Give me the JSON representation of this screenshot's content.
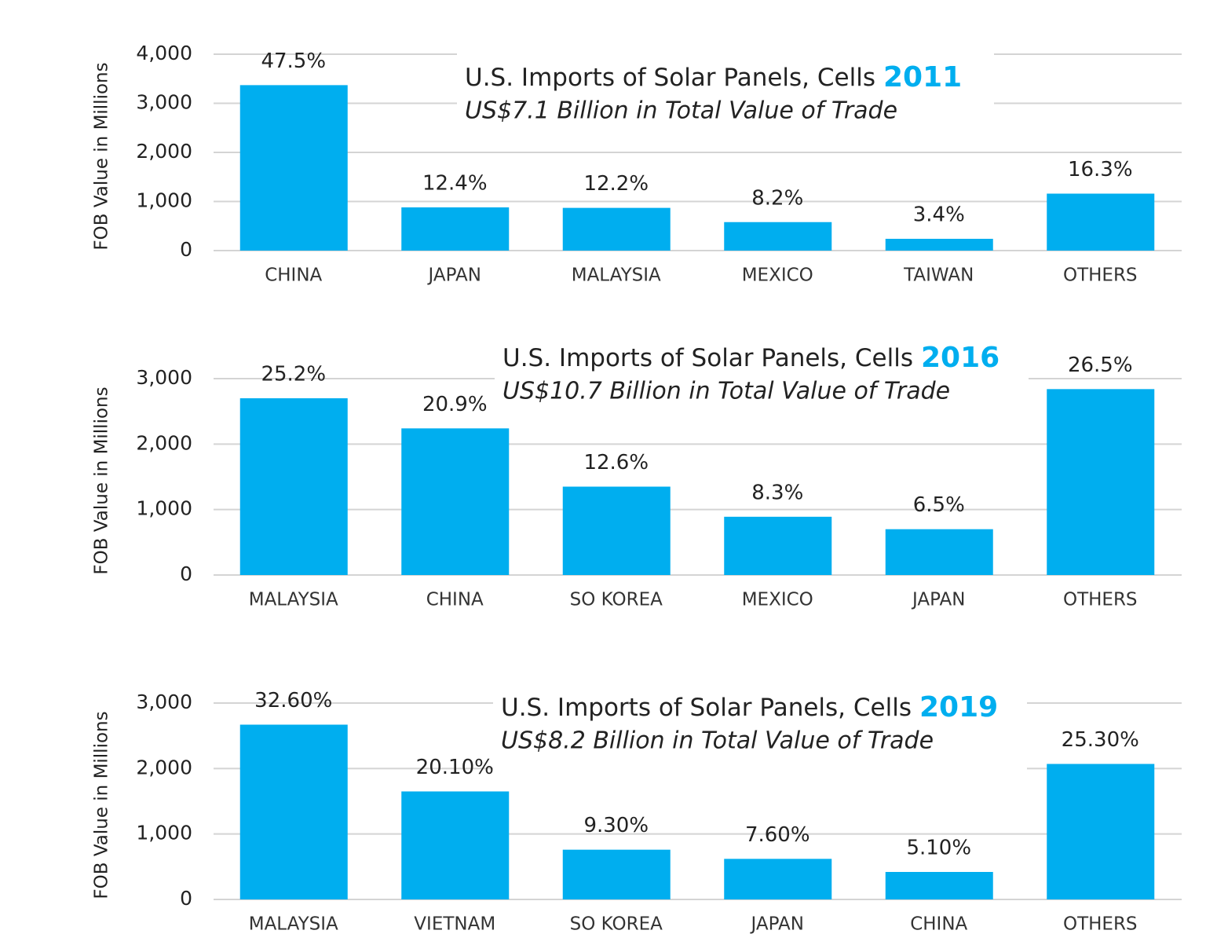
{
  "chart_data": [
    {
      "type": "bar",
      "title": "U.S. Imports of Solar Panels, Cells",
      "title_year": "2011",
      "subtitle": "US$7.1 Billion in Total Value of Trade",
      "ylabel": "FOB Value in Millions",
      "categories": [
        "CHINA",
        "JAPAN",
        "MALAYSIA",
        "MEXICO",
        "TAIWAN",
        "OTHERS"
      ],
      "values": [
        3370,
        880,
        870,
        580,
        240,
        1160
      ],
      "share_labels": [
        "47.5%",
        "12.4%",
        "12.2%",
        "8.2%",
        "3.4%",
        "16.3%"
      ],
      "color": "#00aeef",
      "ylim": [
        0,
        4000
      ],
      "yticks": [
        0,
        {
          "value": 1000,
          "label": "1,000"
        },
        {
          "value": 2000,
          "label": "2,000"
        },
        {
          "value": 3000,
          "label": "3,000"
        },
        {
          "value": 4000,
          "label": "4,000"
        }
      ],
      "grid": true
    },
    {
      "type": "bar",
      "title": "U.S. Imports of Solar Panels, Cells",
      "title_year": "2016",
      "subtitle": "US$10.7 Billion in Total Value of Trade",
      "ylabel": "FOB Value in Millions",
      "categories": [
        "MALAYSIA",
        "CHINA",
        "SO KOREA",
        "MEXICO",
        "JAPAN",
        "OTHERS"
      ],
      "values": [
        2700,
        2240,
        1350,
        890,
        700,
        2840
      ],
      "share_labels": [
        "25.2%",
        "20.9%",
        "12.6%",
        "8.3%",
        "6.5%",
        "26.5%"
      ],
      "color": "#00aeef",
      "ylim": [
        0,
        3000
      ],
      "yticks": [
        0,
        {
          "value": 1000,
          "label": "1,000"
        },
        {
          "value": 2000,
          "label": "2,000"
        },
        {
          "value": 3000,
          "label": "3,000"
        }
      ],
      "grid": true
    },
    {
      "type": "bar",
      "title": "U.S. Imports of Solar Panels, Cells",
      "title_year": "2019",
      "subtitle": "US$8.2 Billion in Total Value of Trade",
      "ylabel": "FOB Value in Millions",
      "categories": [
        "MALAYSIA",
        "VIETNAM",
        "SO KOREA",
        "JAPAN",
        "CHINA",
        "OTHERS"
      ],
      "values": [
        2670,
        1650,
        760,
        620,
        420,
        2070
      ],
      "share_labels": [
        "32.60%",
        "20.10%",
        "9.30%",
        "7.60%",
        "5.10%",
        "25.30%"
      ],
      "color": "#00aeef",
      "ylim": [
        0,
        3000
      ],
      "yticks": [
        0,
        {
          "value": 1000,
          "label": "1,000"
        },
        {
          "value": 2000,
          "label": "2,000"
        },
        {
          "value": 3000,
          "label": "3,000"
        }
      ],
      "grid": true
    }
  ]
}
